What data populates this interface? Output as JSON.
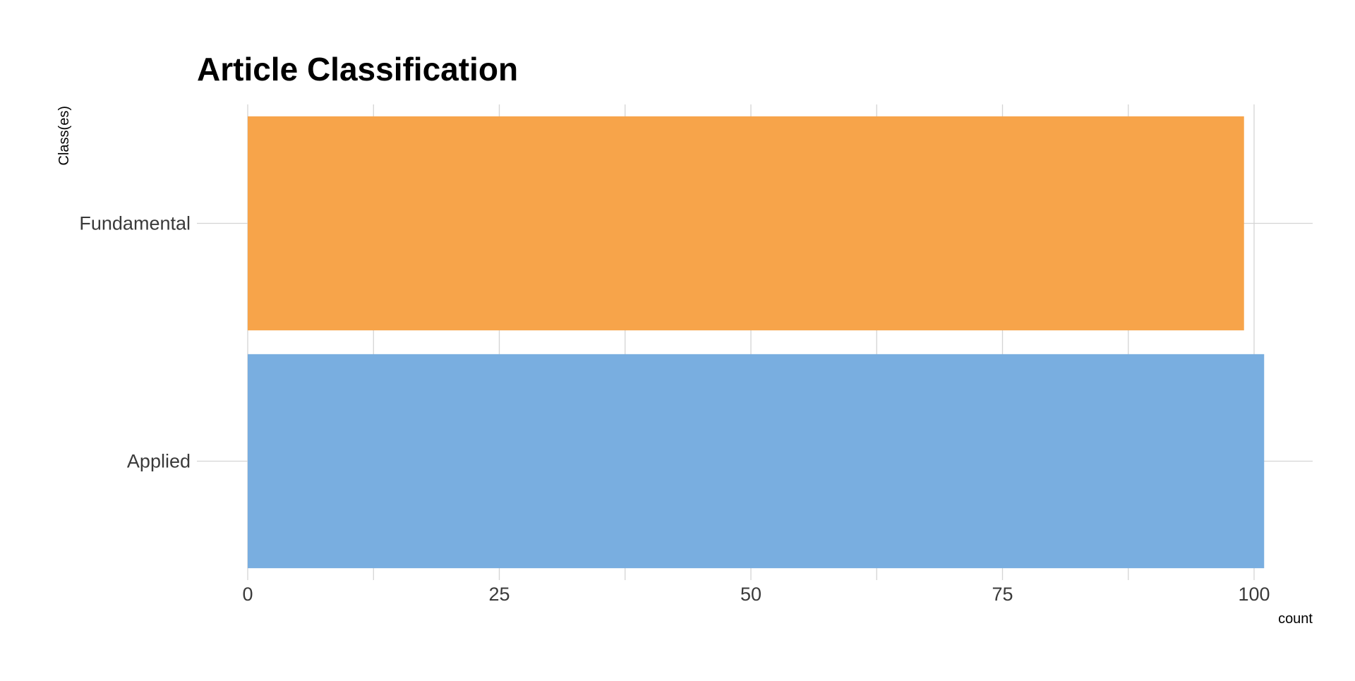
{
  "chart_data": {
    "type": "bar",
    "orientation": "horizontal",
    "title": "Article Classification",
    "xlabel": "count",
    "ylabel": "Class(es)",
    "categories": [
      "Fundamental",
      "Applied"
    ],
    "values": [
      99,
      101
    ],
    "colors": [
      "#F7A44A",
      "#79AEE0"
    ],
    "xlim": [
      0,
      106
    ],
    "xticks": [
      0,
      25,
      50,
      75,
      100
    ],
    "grid": true,
    "legend": "none"
  }
}
